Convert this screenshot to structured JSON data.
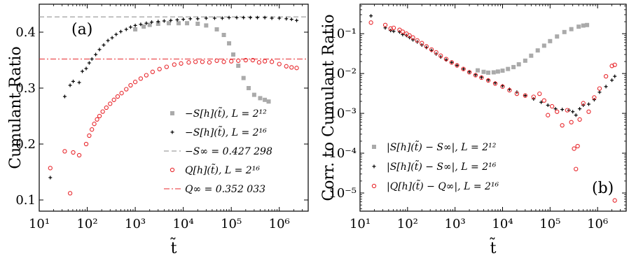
{
  "chart_data": [
    {
      "type": "scatter",
      "panel_label": "(a)",
      "xlabel": "t̃",
      "ylabel": "Cumulant Ratio",
      "xscale": "log",
      "xlim": [
        10,
        4000000
      ],
      "ylim": [
        0.08,
        0.45
      ],
      "xtick_labels": [
        "10¹",
        "10²",
        "10³",
        "10⁴",
        "10⁵",
        "10⁶"
      ],
      "ytick_labels": [
        "0.1",
        "0.2",
        "0.3",
        "0.4"
      ],
      "legend_position": "lower-right",
      "series": [
        {
          "name": "−S[h](t̃), L = 2¹²",
          "marker": "square",
          "color": "#aaaaaa",
          "x": [
            1000,
            1500,
            2000,
            3000,
            5000,
            8000,
            12000,
            20000,
            30000,
            50000,
            70000,
            90000,
            110000,
            140000,
            180000,
            230000,
            300000,
            400000,
            500000,
            600000
          ],
          "y": [
            0.405,
            0.41,
            0.413,
            0.415,
            0.416,
            0.416,
            0.416,
            0.415,
            0.412,
            0.405,
            0.395,
            0.38,
            0.36,
            0.34,
            0.318,
            0.3,
            0.288,
            0.282,
            0.279,
            0.276
          ]
        },
        {
          "name": "−S[h](t̃), L = 2¹⁶",
          "marker": "plus",
          "color": "#000000",
          "x": [
            17,
            34,
            44,
            51,
            68,
            79,
            95,
            110,
            125,
            150,
            180,
            220,
            270,
            330,
            400,
            500,
            650,
            800,
            1000,
            1300,
            1700,
            2200,
            3000,
            4000,
            5500,
            7500,
            10000,
            14000,
            20000,
            30000,
            45000,
            65000,
            90000,
            130000,
            180000,
            250000,
            350000,
            500000,
            700000,
            1000000,
            1400000,
            1800000,
            2300000
          ],
          "y": [
            0.14,
            0.285,
            0.305,
            0.312,
            0.31,
            0.33,
            0.335,
            0.345,
            0.352,
            0.36,
            0.369,
            0.377,
            0.385,
            0.39,
            0.396,
            0.401,
            0.405,
            0.409,
            0.412,
            0.414,
            0.416,
            0.418,
            0.419,
            0.42,
            0.421,
            0.422,
            0.423,
            0.424,
            0.424,
            0.425,
            0.425,
            0.425,
            0.426,
            0.426,
            0.426,
            0.426,
            0.426,
            0.426,
            0.425,
            0.425,
            0.424,
            0.423,
            0.421
          ]
        },
        {
          "name": "Q[h](t̃), L = 2¹⁶",
          "marker": "circle",
          "color": "#e8282d",
          "x": [
            17,
            34,
            44,
            51,
            68,
            95,
            110,
            125,
            140,
            160,
            180,
            210,
            250,
            300,
            360,
            430,
            520,
            650,
            800,
            1000,
            1300,
            1700,
            2300,
            3200,
            4500,
            6500,
            9000,
            13000,
            18000,
            25000,
            35000,
            50000,
            70000,
            100000,
            140000,
            200000,
            280000,
            380000,
            500000,
            700000,
            1000000,
            1400000,
            1800000,
            2300000
          ],
          "y": [
            0.157,
            0.187,
            0.112,
            0.185,
            0.18,
            0.2,
            0.215,
            0.226,
            0.236,
            0.244,
            0.25,
            0.258,
            0.265,
            0.272,
            0.279,
            0.285,
            0.291,
            0.298,
            0.305,
            0.311,
            0.317,
            0.323,
            0.329,
            0.334,
            0.338,
            0.342,
            0.344,
            0.346,
            0.347,
            0.347,
            0.346,
            0.349,
            0.347,
            0.348,
            0.349,
            0.35,
            0.35,
            0.346,
            0.348,
            0.347,
            0.343,
            0.339,
            0.337,
            0.336
          ]
        }
      ],
      "reference_lines": [
        {
          "name": "−S∞ = 0.427 298",
          "y": 0.427298,
          "style": "dashed",
          "color": "#888888"
        },
        {
          "name": "Q∞ = 0.352 033",
          "y": 0.352033,
          "style": "dashdot",
          "color": "#e8282d"
        }
      ]
    },
    {
      "type": "scatter",
      "panel_label": "(b)",
      "xlabel": "t̃",
      "ylabel": "Corr. to Cumulant Ratio",
      "xscale": "log",
      "yscale": "log",
      "xlim": [
        10,
        4000000
      ],
      "ylim": [
        3.5e-06,
        0.55
      ],
      "xtick_labels": [
        "10¹",
        "10²",
        "10³",
        "10⁴",
        "10⁵",
        "10⁶"
      ],
      "ytick_labels": [
        "10⁻⁵",
        "10⁻⁴",
        "10⁻³",
        "10⁻²",
        "10⁻¹"
      ],
      "legend_position": "lower-left",
      "series": [
        {
          "name": "|S[h](t̃) − S∞|, L = 2¹²",
          "marker": "square",
          "color": "#aaaaaa",
          "x": [
            3000,
            4000,
            5000,
            6500,
            8000,
            10000,
            13000,
            17000,
            22000,
            30000,
            40000,
            55000,
            75000,
            100000,
            140000,
            200000,
            280000,
            400000,
            500000,
            600000
          ],
          "y": [
            0.012,
            0.011,
            0.0105,
            0.0107,
            0.0112,
            0.0118,
            0.013,
            0.0145,
            0.017,
            0.021,
            0.028,
            0.038,
            0.05,
            0.065,
            0.085,
            0.11,
            0.13,
            0.15,
            0.16,
            0.165
          ]
        },
        {
          "name": "|S[h](t̃) − S∞|, L = 2¹⁶",
          "marker": "plus",
          "color": "#000000",
          "x": [
            17,
            34,
            44,
            51,
            68,
            79,
            95,
            110,
            130,
            160,
            200,
            250,
            320,
            400,
            500,
            650,
            850,
            1100,
            1500,
            2000,
            2700,
            3600,
            5000,
            7000,
            10000,
            14000,
            20000,
            30000,
            45000,
            65000,
            90000,
            130000,
            180000,
            250000,
            300000,
            350000,
            420000,
            500000,
            650000,
            850000,
            1100000,
            1500000,
            2000000,
            2300000
          ],
          "y": [
            0.28,
            0.14,
            0.12,
            0.115,
            0.11,
            0.095,
            0.09,
            0.08,
            0.07,
            0.062,
            0.052,
            0.045,
            0.038,
            0.031,
            0.026,
            0.022,
            0.019,
            0.016,
            0.013,
            0.011,
            0.0093,
            0.0081,
            0.0069,
            0.0058,
            0.0049,
            0.004,
            0.0034,
            0.0028,
            0.0023,
            0.0019,
            0.0016,
            0.0013,
            0.00125,
            0.0012,
            0.0011,
            0.0009,
            0.0013,
            0.0016,
            0.0017,
            0.0022,
            0.0034,
            0.0047,
            0.0068,
            0.0085
          ]
        },
        {
          "name": "|Q[h](t̃) − Q∞|, L = 2¹⁶",
          "marker": "circle",
          "color": "#e8282d",
          "x": [
            17,
            34,
            44,
            51,
            68,
            79,
            95,
            110,
            130,
            160,
            200,
            250,
            320,
            400,
            500,
            650,
            850,
            1100,
            1500,
            2000,
            2700,
            3600,
            5000,
            7000,
            10000,
            14000,
            20000,
            30000,
            45000,
            60000,
            75000,
            90000,
            110000,
            140000,
            180000,
            230000,
            280000,
            320000,
            350000,
            380000,
            420000,
            500000,
            650000,
            850000,
            1100000,
            1500000,
            2000000,
            2300000
          ],
          "y": [
            0.19,
            0.165,
            0.135,
            0.14,
            0.125,
            0.112,
            0.1,
            0.09,
            0.08,
            0.068,
            0.058,
            0.048,
            0.04,
            0.034,
            0.028,
            0.023,
            0.019,
            0.016,
            0.013,
            0.0108,
            0.0091,
            0.0079,
            0.0067,
            0.0056,
            0.0047,
            0.0038,
            0.0031,
            0.0028,
            0.0026,
            0.0031,
            0.0021,
            0.0009,
            0.0015,
            0.0011,
            0.0005,
            0.0012,
            0.0006,
            0.00013,
            4e-05,
            0.00015,
            0.0007,
            0.0018,
            0.0011,
            0.0025,
            0.0042,
            0.0085,
            0.0155,
            0.0165
          ]
        }
      ],
      "outlier_points": [
        {
          "x": 2300000,
          "y": 6.5e-06,
          "series": "|Q[h](t̃) − Q∞|, L = 2¹⁶"
        }
      ]
    }
  ]
}
